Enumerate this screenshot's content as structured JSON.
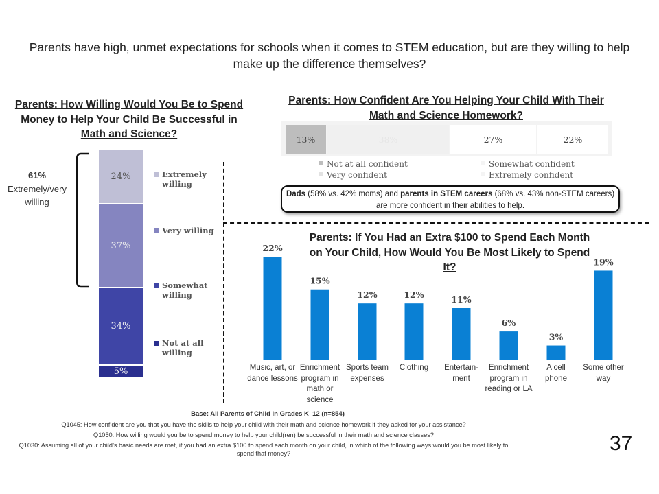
{
  "title": "Parents have high, unmet expectations for schools when it comes to STEM education, but are they willing to help make up the difference themselves?",
  "willing": {
    "title": "Parents: How Willing Would You Be to Spend Money to Help Your Child Be Successful in Math and Science?",
    "brace_pct": "61%",
    "brace_text": "Extremely/very willing",
    "segments": [
      {
        "label": "Extremely willing",
        "value": 24,
        "text": "24%",
        "color": "#bfbfd6"
      },
      {
        "label": "Very willing",
        "value": 37,
        "text": "37%",
        "color": "#8585c0"
      },
      {
        "label": "Somewhat willing",
        "value": 34,
        "text": "34%",
        "color": "#3f45a6"
      },
      {
        "label": "Not at all willing",
        "value": 5,
        "text": "5%",
        "color": "#2a2f8f"
      }
    ]
  },
  "confidence": {
    "title": "Parents: How Confident Are You Helping Your Child With Their Math and Science Homework?",
    "segments": [
      {
        "label": "Not at all confident",
        "value": 13,
        "text": "13%",
        "color": "#bdbdbd"
      },
      {
        "label": "Very confident",
        "value": 38,
        "text": "38%",
        "color": "#f0f0f0"
      },
      {
        "label": "Somewhat confident",
        "value": 27,
        "text": "27%",
        "color": "#ffffff"
      },
      {
        "label": "Extremely confident",
        "value": 22,
        "text": "22%",
        "color": "#ffffff"
      }
    ],
    "callout_parts": [
      "Dads",
      " (58% vs. 42% moms) and ",
      "parents in STEM careers",
      " (68% vs. 43% non-STEM careers) are more confident in their abilities to help."
    ]
  },
  "spending": {
    "title": "Parents: If You Had an Extra $100 to Spend Each Month on Your Child, How Would You Be Most Likely to Spend It?"
  },
  "chart_data": {
    "type": "bar",
    "categories": [
      "Music, art, or dance lessons",
      "Enrichment program in math or science",
      "Sports team expenses",
      "Clothing",
      "Entertain-ment",
      "Enrichment program in reading or LA",
      "A cell phone",
      "Some other way"
    ],
    "values": [
      22,
      15,
      12,
      12,
      11,
      6,
      3,
      19
    ],
    "value_labels": [
      "22%",
      "15%",
      "12%",
      "12%",
      "11%",
      "6%",
      "3%",
      "19%"
    ],
    "color": "#0a80d4",
    "ylim": [
      0,
      22
    ]
  },
  "footnotes": {
    "base": "Base: All Parents of Child in Grades K–12 (n=854)",
    "q1045": "Q1045: How confident are you that you have the skills to help your child with their math and science homework if they asked for your assistance?",
    "q1050": "Q1050: How willing would you be to spend money to help your child(ren) be successful in their math and science classes?",
    "q1030": "Q1030: Assuming all of your child’s basic needs are met, if you had an extra $100 to spend each month on your child, in which of the following ways would you be most likely to spend that money?"
  },
  "page_number": "37"
}
